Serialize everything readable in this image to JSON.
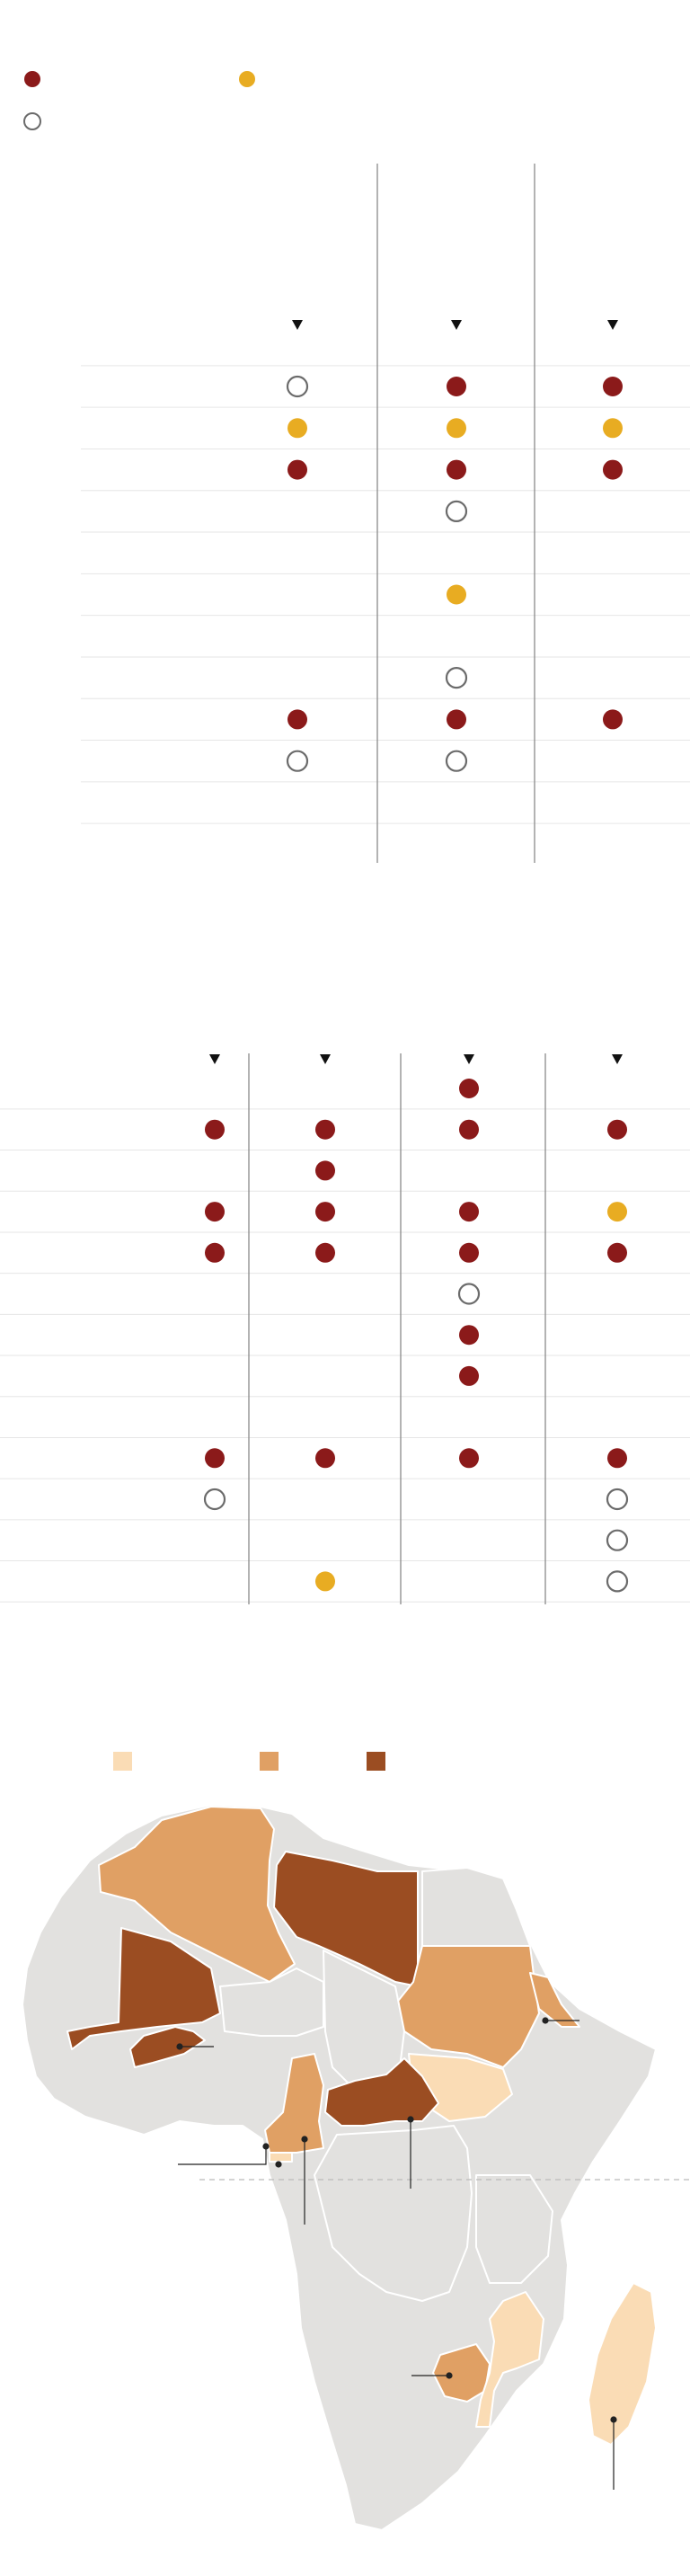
{
  "colors": {
    "red": "#8b1a1a",
    "yellow": "#e8ac22",
    "hollow_stroke": "#6b6b6b",
    "map_light": "#fadcb5",
    "map_medium": "#e0a064",
    "map_dark": "#9b4d22",
    "map_base": "#e2e1df",
    "border": "#ffffff",
    "divider": "#8a8a8a",
    "rowline": "#e6e6e6"
  },
  "legend": {
    "items": [
      {
        "marker": "red",
        "label": ""
      },
      {
        "marker": "yellow",
        "label": ""
      },
      {
        "marker": "hollow",
        "label": ""
      }
    ]
  },
  "chart_data": [
    {
      "type": "table",
      "columns": [
        "",
        "",
        ""
      ],
      "rows": [
        {
          "label": "",
          "values": [
            "hollow",
            "red",
            "red"
          ]
        },
        {
          "label": "",
          "values": [
            "yellow",
            "yellow",
            "yellow"
          ]
        },
        {
          "label": "",
          "values": [
            "red",
            "red",
            "red"
          ]
        },
        {
          "label": "",
          "values": [
            "",
            "hollow",
            ""
          ]
        },
        {
          "label": "",
          "values": [
            "",
            "",
            ""
          ]
        },
        {
          "label": "",
          "values": [
            "",
            "yellow",
            ""
          ]
        },
        {
          "label": "",
          "values": [
            "",
            "",
            ""
          ]
        },
        {
          "label": "",
          "values": [
            "",
            "hollow",
            ""
          ]
        },
        {
          "label": "",
          "values": [
            "red",
            "red",
            "red"
          ]
        },
        {
          "label": "",
          "values": [
            "hollow",
            "hollow",
            ""
          ]
        },
        {
          "label": "",
          "values": [
            "",
            "",
            ""
          ]
        }
      ]
    },
    {
      "type": "table",
      "columns": [
        "",
        "",
        "",
        ""
      ],
      "rows": [
        {
          "label": "",
          "values": [
            "",
            "",
            "red",
            ""
          ]
        },
        {
          "label": "",
          "values": [
            "red",
            "red",
            "red",
            "red"
          ]
        },
        {
          "label": "",
          "values": [
            "",
            "red",
            "",
            ""
          ]
        },
        {
          "label": "",
          "values": [
            "red",
            "red",
            "red",
            "yellow"
          ]
        },
        {
          "label": "",
          "values": [
            "red",
            "red",
            "red",
            "red"
          ]
        },
        {
          "label": "",
          "values": [
            "",
            "",
            "hollow",
            ""
          ]
        },
        {
          "label": "",
          "values": [
            "",
            "",
            "red",
            ""
          ]
        },
        {
          "label": "",
          "values": [
            "",
            "",
            "red",
            ""
          ]
        },
        {
          "label": "",
          "values": [
            "",
            "",
            "",
            ""
          ]
        },
        {
          "label": "",
          "values": [
            "red",
            "red",
            "red",
            "red"
          ]
        },
        {
          "label": "",
          "values": [
            "hollow",
            "",
            "",
            "hollow"
          ]
        },
        {
          "label": "",
          "values": [
            "",
            "",
            "",
            "hollow"
          ]
        },
        {
          "label": "",
          "values": [
            "",
            "yellow",
            "",
            "hollow"
          ]
        }
      ]
    }
  ],
  "map": {
    "legend": [
      {
        "shade": "light",
        "label": ""
      },
      {
        "shade": "medium",
        "label": ""
      },
      {
        "shade": "dark",
        "label": ""
      }
    ]
  }
}
